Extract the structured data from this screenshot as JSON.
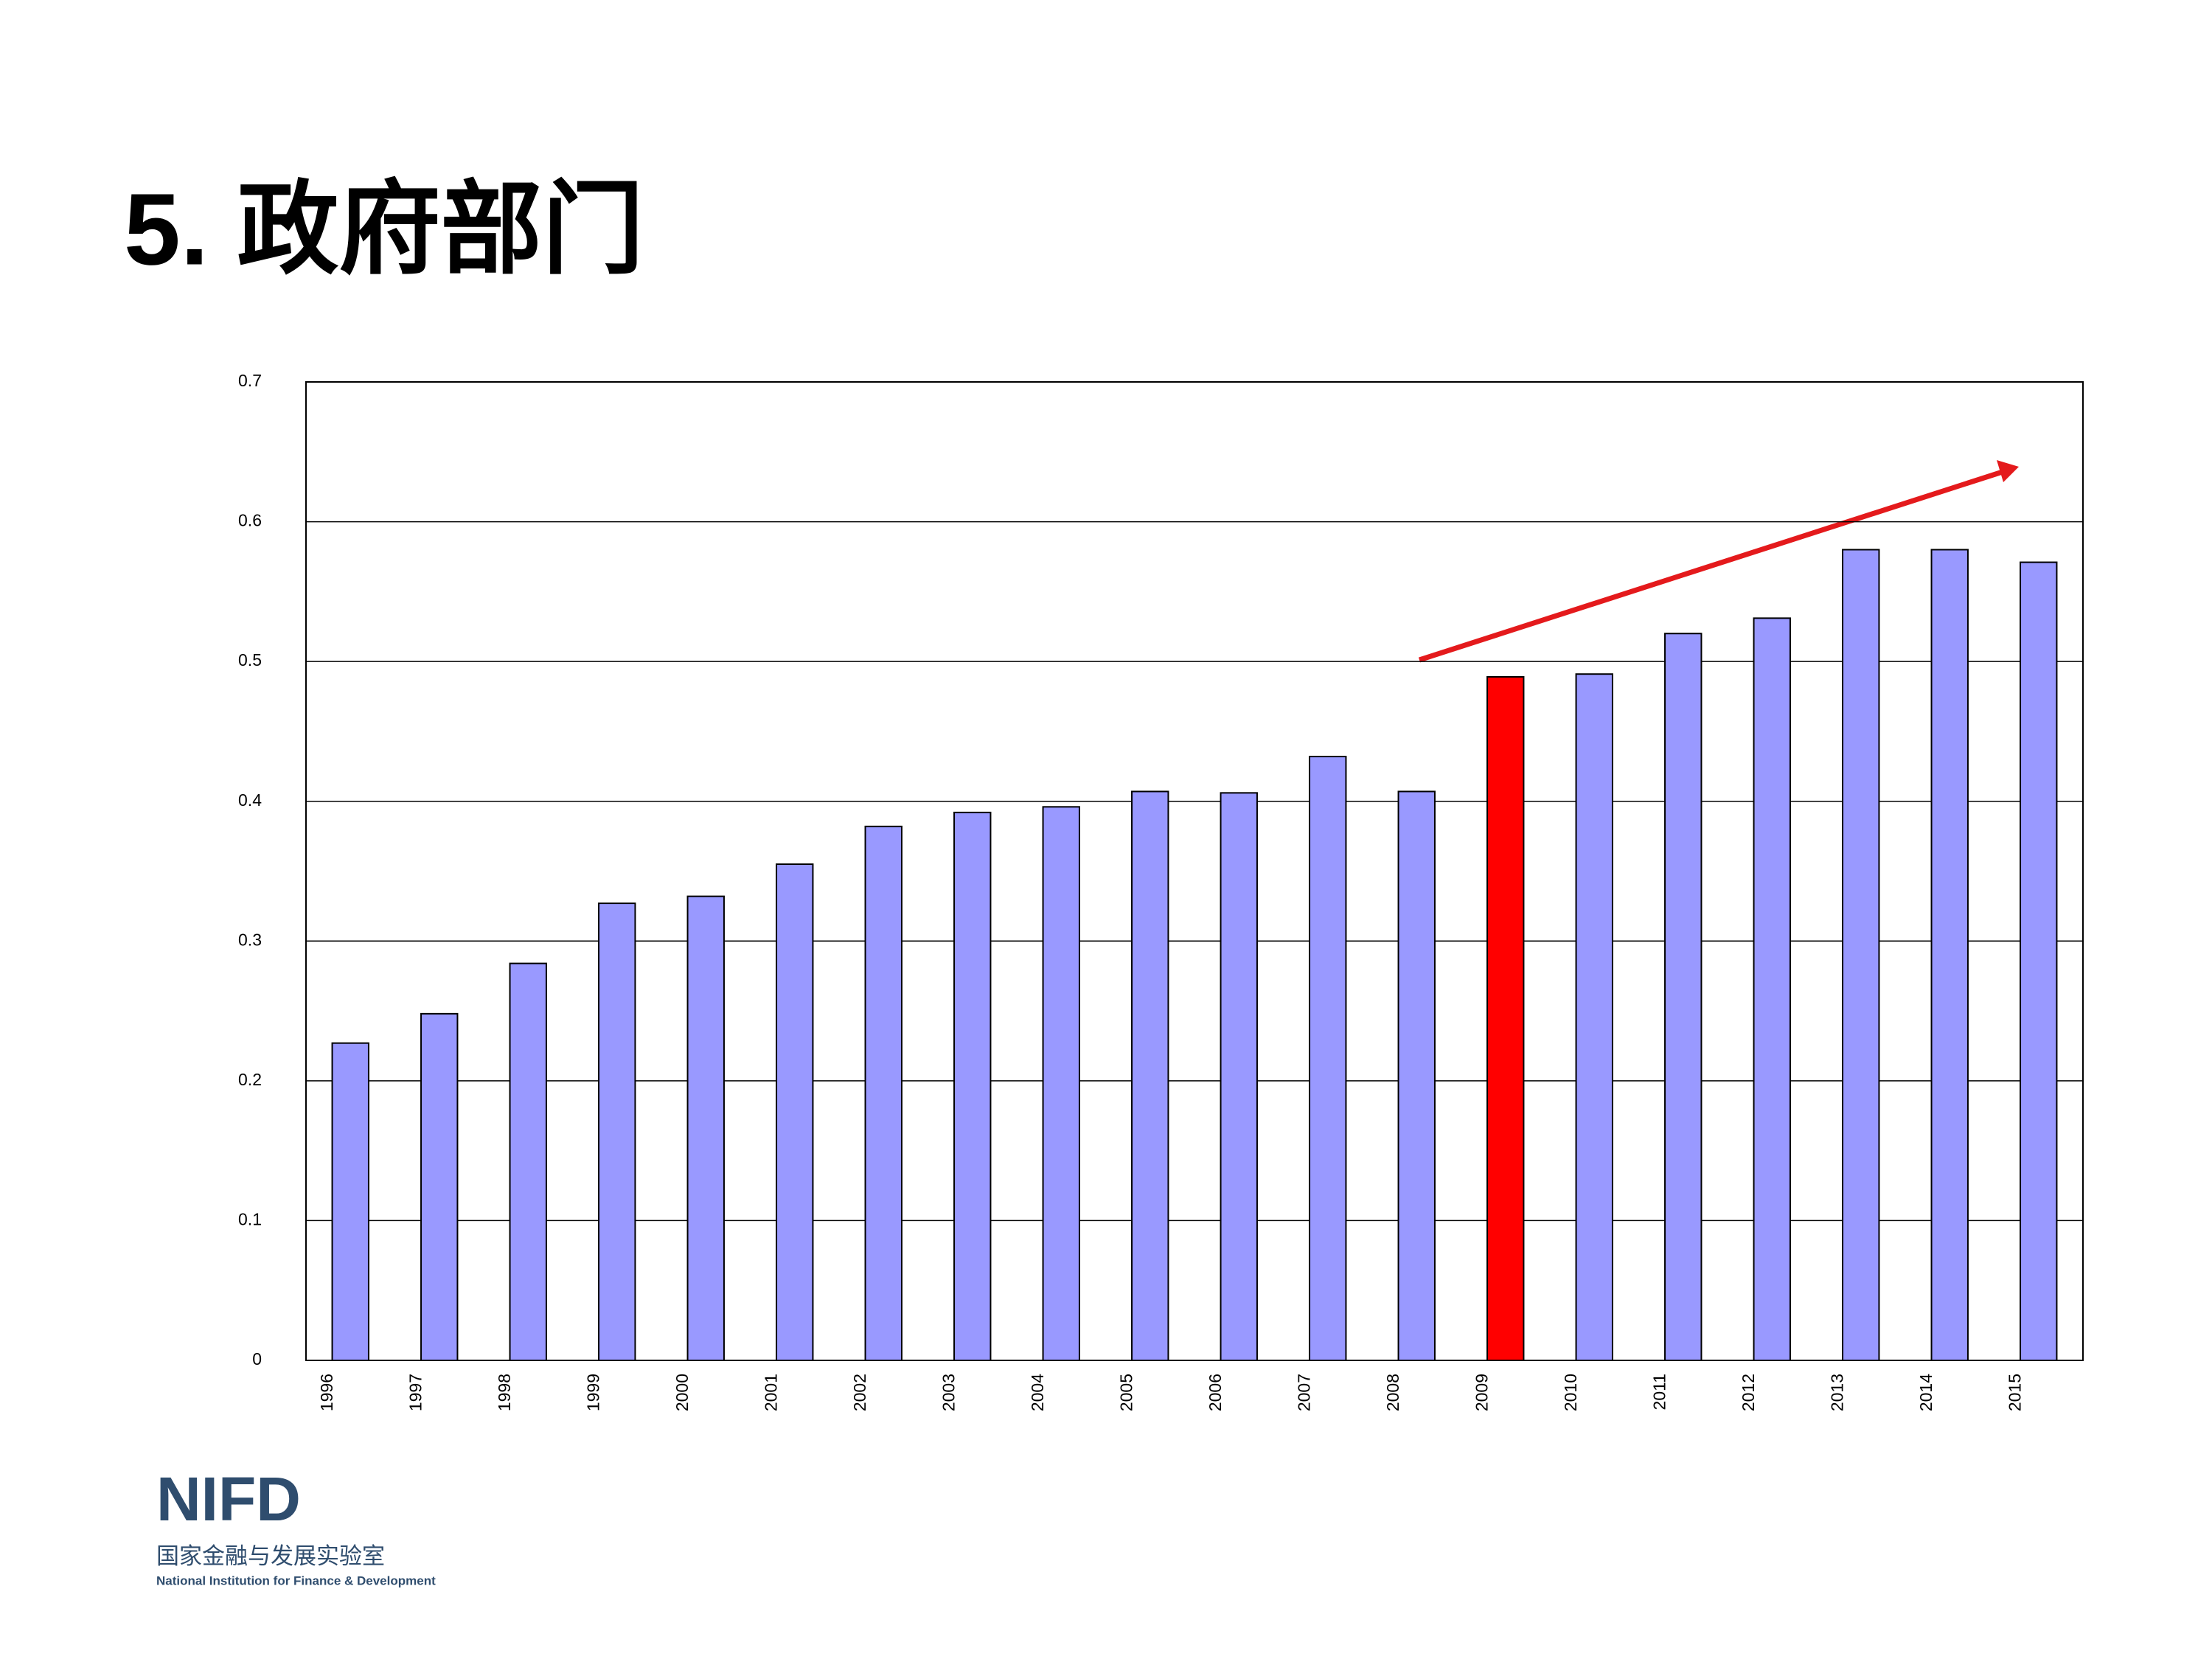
{
  "chart_data": {
    "type": "bar",
    "title": "5. 政府部门",
    "categories": [
      "1996",
      "1997",
      "1998",
      "1999",
      "2000",
      "2001",
      "2002",
      "2003",
      "2004",
      "2005",
      "2006",
      "2007",
      "2008",
      "2009",
      "2010",
      "2011",
      "2012",
      "2013",
      "2014",
      "2015"
    ],
    "values": [
      0.227,
      0.248,
      0.284,
      0.327,
      0.332,
      0.355,
      0.382,
      0.392,
      0.396,
      0.407,
      0.406,
      0.432,
      0.407,
      0.489,
      0.491,
      0.52,
      0.531,
      0.58,
      0.58,
      0.571
    ],
    "colors": [
      "#9999ff",
      "#9999ff",
      "#9999ff",
      "#9999ff",
      "#9999ff",
      "#9999ff",
      "#9999ff",
      "#9999ff",
      "#9999ff",
      "#9999ff",
      "#9999ff",
      "#9999ff",
      "#9999ff",
      "#ff0000",
      "#9999ff",
      "#9999ff",
      "#9999ff",
      "#9999ff",
      "#9999ff",
      "#9999ff"
    ],
    "ylim": [
      0,
      0.7
    ],
    "yticks": [
      0,
      0.1,
      0.2,
      0.3,
      0.4,
      0.5,
      0.6,
      0.7
    ],
    "grid": true
  },
  "logo": {
    "mark": "NIFD",
    "name_cn": "国家金融与发展实验室",
    "name_en": "National Institution for Finance & Development"
  }
}
